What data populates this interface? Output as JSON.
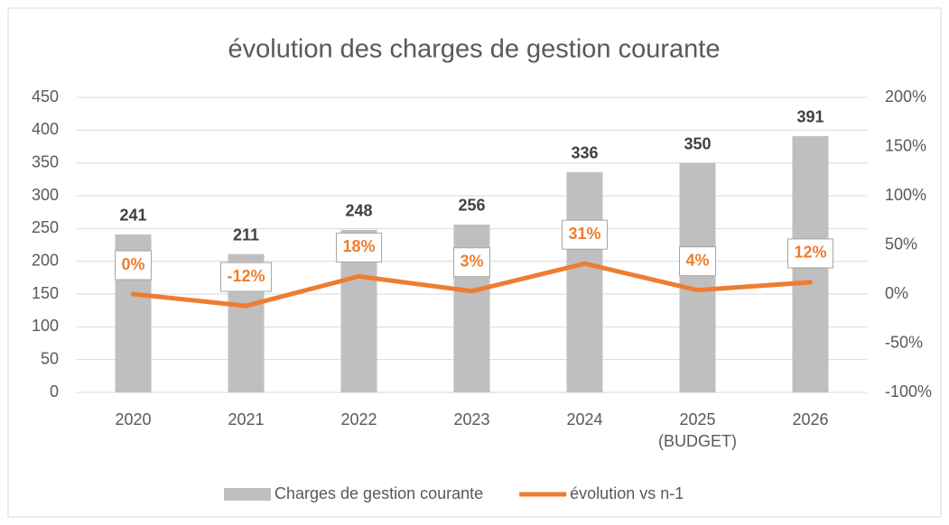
{
  "chart_data": {
    "type": "bar+line",
    "title": "évolution des charges de gestion courante",
    "categories": [
      "2020",
      "2021",
      "2022",
      "2023",
      "2024",
      "2025\n(BUDGET)",
      "2026"
    ],
    "series": [
      {
        "name": "Charges de gestion courante",
        "type": "bar",
        "color": "#bfbfbf",
        "values": [
          241,
          211,
          248,
          256,
          336,
          350,
          391
        ]
      },
      {
        "name": "évolution vs n-1",
        "type": "line",
        "axis": "y2",
        "color": "#ed7d31",
        "values": [
          0,
          -12,
          18,
          3,
          31,
          4,
          12
        ],
        "value_labels": [
          "0%",
          "-12%",
          "18%",
          "3%",
          "31%",
          "4%",
          "12%"
        ]
      }
    ],
    "ylim": [
      0,
      450
    ],
    "yticks": [
      0,
      50,
      100,
      150,
      200,
      250,
      300,
      350,
      400,
      450
    ],
    "y2lim": [
      -100,
      200
    ],
    "y2ticks": [
      {
        "value": -100,
        "label": "-100%"
      },
      {
        "value": -50,
        "label": "-50%"
      },
      {
        "value": 0,
        "label": "0%"
      },
      {
        "value": 50,
        "label": "50%"
      },
      {
        "value": 100,
        "label": "100%"
      },
      {
        "value": 150,
        "label": "150%"
      },
      {
        "value": 200,
        "label": "200%"
      }
    ],
    "grid": true,
    "legend": "bottom"
  }
}
